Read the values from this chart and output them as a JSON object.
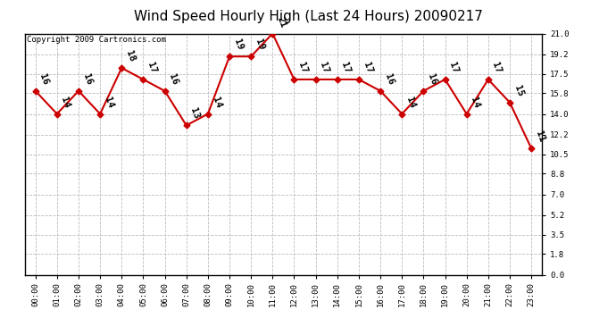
{
  "title": "Wind Speed Hourly High (Last 24 Hours) 20090217",
  "copyright": "Copyright 2009 Cartronics.com",
  "hours": [
    "00:00",
    "01:00",
    "02:00",
    "03:00",
    "04:00",
    "05:00",
    "06:00",
    "07:00",
    "08:00",
    "09:00",
    "10:00",
    "11:00",
    "12:00",
    "13:00",
    "14:00",
    "15:00",
    "16:00",
    "17:00",
    "18:00",
    "19:00",
    "20:00",
    "21:00",
    "22:00",
    "23:00"
  ],
  "values": [
    16,
    14,
    16,
    14,
    18,
    17,
    16,
    13,
    14,
    19,
    19,
    21,
    17,
    17,
    17,
    17,
    16,
    14,
    16,
    17,
    14,
    17,
    15,
    11
  ],
  "yticks": [
    0.0,
    1.8,
    3.5,
    5.2,
    7.0,
    8.8,
    10.5,
    12.2,
    14.0,
    15.8,
    17.5,
    19.2,
    21.0
  ],
  "line_color": "#cc0000",
  "marker_color": "#cc0000",
  "bg_color": "#ffffff",
  "grid_color": "#bbbbbb",
  "title_fontsize": 11,
  "copyright_fontsize": 6.5,
  "label_fontsize": 6.5,
  "annot_fontsize": 7.5
}
